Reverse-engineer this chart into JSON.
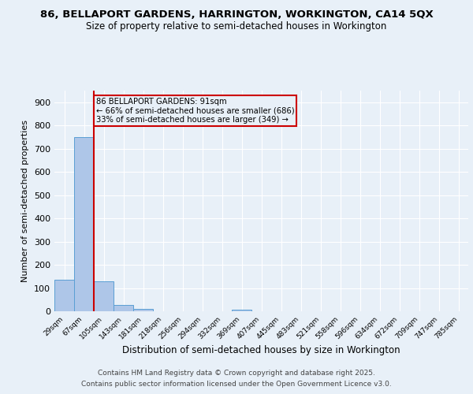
{
  "title_line1": "86, BELLAPORT GARDENS, HARRINGTON, WORKINGTON, CA14 5QX",
  "title_line2": "Size of property relative to semi-detached houses in Workington",
  "xlabel": "Distribution of semi-detached houses by size in Workington",
  "ylabel": "Number of semi-detached properties",
  "bin_labels": [
    "29sqm",
    "67sqm",
    "105sqm",
    "143sqm",
    "181sqm",
    "218sqm",
    "256sqm",
    "294sqm",
    "332sqm",
    "369sqm",
    "407sqm",
    "445sqm",
    "483sqm",
    "521sqm",
    "558sqm",
    "596sqm",
    "634sqm",
    "672sqm",
    "709sqm",
    "747sqm",
    "785sqm"
  ],
  "bar_heights": [
    135,
    750,
    128,
    28,
    11,
    0,
    0,
    0,
    0,
    8,
    0,
    0,
    0,
    0,
    0,
    0,
    0,
    0,
    0,
    0,
    0
  ],
  "bar_color": "#aec6e8",
  "bar_edgecolor": "#5a9fd4",
  "annotation_text": "86 BELLAPORT GARDENS: 91sqm\n← 66% of semi-detached houses are smaller (686)\n33% of semi-detached houses are larger (349) →",
  "vline_color": "#cc0000",
  "box_edgecolor": "#cc0000",
  "ylim": [
    0,
    950
  ],
  "yticks": [
    0,
    100,
    200,
    300,
    400,
    500,
    600,
    700,
    800,
    900
  ],
  "background_color": "#e8f0f8",
  "grid_color": "#ffffff",
  "footer_line1": "Contains HM Land Registry data © Crown copyright and database right 2025.",
  "footer_line2": "Contains public sector information licensed under the Open Government Licence v3.0."
}
